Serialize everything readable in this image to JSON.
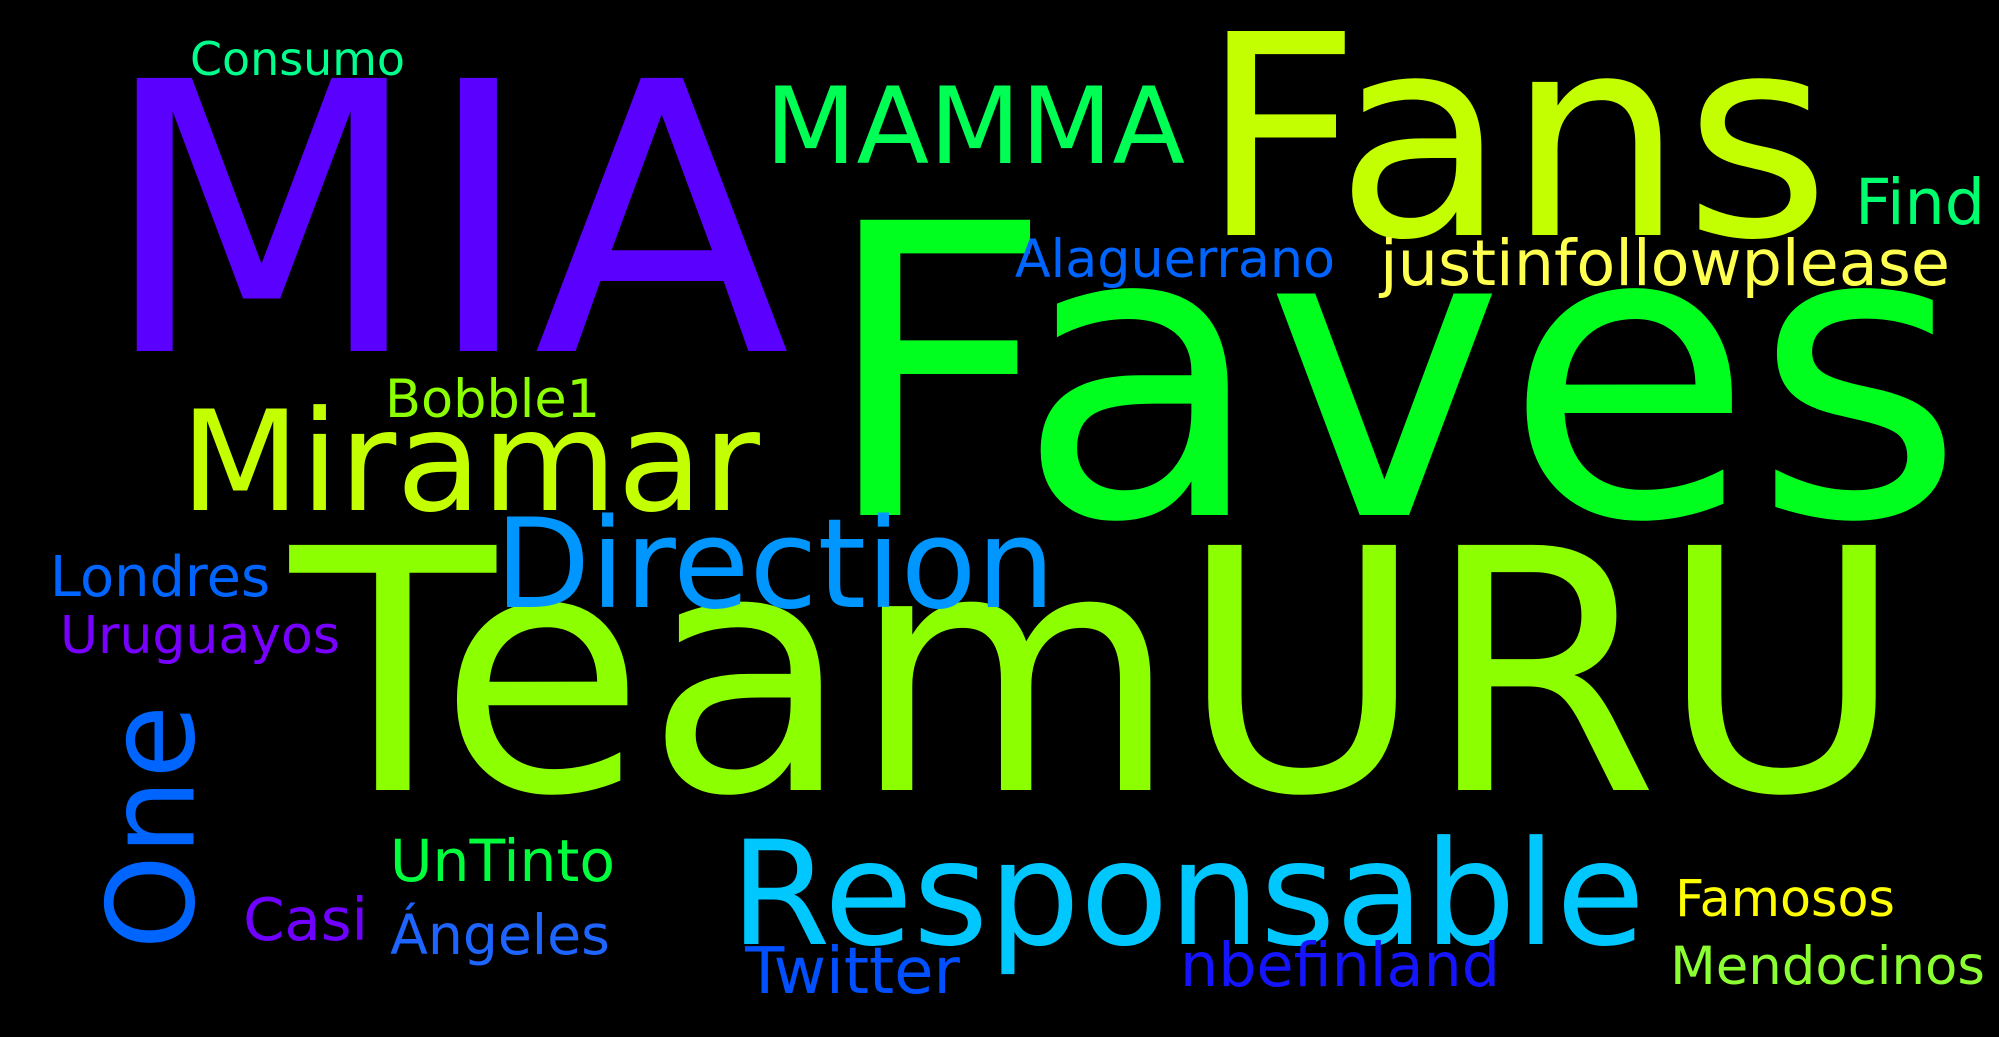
{
  "words": [
    {
      "id": "teamuru",
      "text": "TeamURU",
      "color": "#8cff00"
    },
    {
      "id": "faves",
      "text": "Faves",
      "color": "#00ff1e"
    },
    {
      "id": "mia",
      "text": "MIA",
      "color": "#5a00ff"
    },
    {
      "id": "fans",
      "text": "Fans",
      "color": "#c3ff00"
    },
    {
      "id": "mamma",
      "text": "MAMMA",
      "color": "#00ff55"
    },
    {
      "id": "miramar",
      "text": "Miramar",
      "color": "#c3ff00"
    },
    {
      "id": "responsable",
      "text": "Responsable",
      "color": "#00c8ff"
    },
    {
      "id": "direction",
      "text": "Direction",
      "color": "#0096ff"
    },
    {
      "id": "one",
      "text": "One",
      "color": "#0064ff"
    },
    {
      "id": "consumo",
      "text": "Consumo",
      "color": "#00ff8c"
    },
    {
      "id": "find",
      "text": "Find",
      "color": "#00ff6e"
    },
    {
      "id": "alaguerrano",
      "text": "Alaguerrano",
      "color": "#0064ff"
    },
    {
      "id": "justinfollowplease",
      "text": "justinfollowplease",
      "color": "#ffff50"
    },
    {
      "id": "bobble1",
      "text": "Bobble1",
      "color": "#8cff00"
    },
    {
      "id": "londres",
      "text": "Londres",
      "color": "#0064ff"
    },
    {
      "id": "uruguayos",
      "text": "Uruguayos",
      "color": "#7800ff"
    },
    {
      "id": "untinto",
      "text": "UnTinto",
      "color": "#00ff3c"
    },
    {
      "id": "casi",
      "text": "Casi",
      "color": "#7000ff"
    },
    {
      "id": "angeles",
      "text": "Ángeles",
      "color": "#1e64ff"
    },
    {
      "id": "twitter",
      "text": "Twitter",
      "color": "#0050ff"
    },
    {
      "id": "nbefinland",
      "text": "nbefinland",
      "color": "#1414ff"
    },
    {
      "id": "famosos",
      "text": "Famosos",
      "color": "#ffff00"
    },
    {
      "id": "mendocinos",
      "text": "Mendocinos",
      "color": "#8cff32"
    }
  ]
}
